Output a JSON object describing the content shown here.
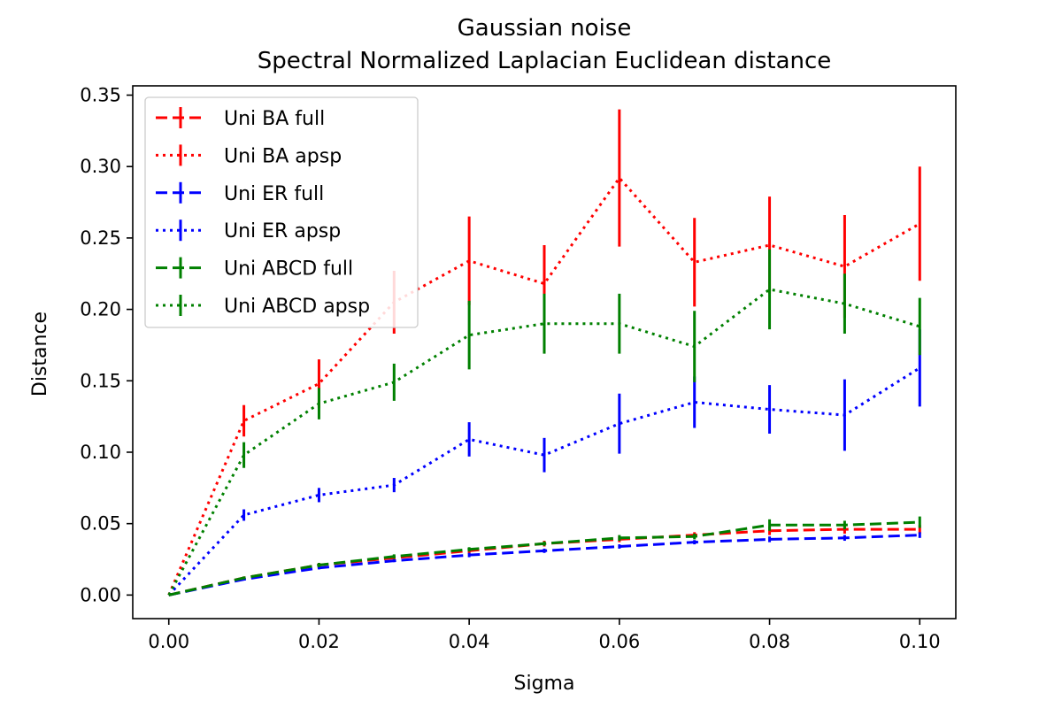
{
  "chart_data": {
    "type": "line",
    "title": "Gaussian noise",
    "subtitle": "Spectral Normalized Laplacian Euclidean distance",
    "xlabel": "Sigma",
    "ylabel": "Distance",
    "xlim": [
      -0.0048,
      0.1048
    ],
    "ylim": [
      -0.0165,
      0.3565
    ],
    "x": [
      0.0,
      0.01,
      0.02,
      0.03,
      0.04,
      0.05,
      0.06,
      0.07,
      0.08,
      0.09,
      0.1
    ],
    "xticks": [
      0.0,
      0.02,
      0.04,
      0.06,
      0.08,
      0.1
    ],
    "xtick_labels": [
      "0.00",
      "0.02",
      "0.04",
      "0.06",
      "0.08",
      "0.10"
    ],
    "yticks": [
      0.0,
      0.05,
      0.1,
      0.15,
      0.2,
      0.25,
      0.3,
      0.35
    ],
    "ytick_labels": [
      "0.00",
      "0.05",
      "0.10",
      "0.15",
      "0.20",
      "0.25",
      "0.30",
      "0.35"
    ],
    "grid": false,
    "legend_position": "upper-left",
    "series": [
      {
        "name": "Uni BA full",
        "color": "#ff0000",
        "linestyle": "dashed",
        "values": [
          0.0,
          0.012,
          0.021,
          0.026,
          0.031,
          0.036,
          0.039,
          0.042,
          0.045,
          0.046,
          0.046
        ],
        "errors": [
          0.0,
          0.001,
          0.0015,
          0.0015,
          0.002,
          0.002,
          0.002,
          0.002,
          0.003,
          0.003,
          0.003
        ]
      },
      {
        "name": "Uni BA apsp",
        "color": "#ff0000",
        "linestyle": "dotted",
        "values": [
          0.0,
          0.122,
          0.148,
          0.205,
          0.234,
          0.218,
          0.292,
          0.233,
          0.245,
          0.23,
          0.26
        ],
        "errors": [
          0.0,
          0.011,
          0.017,
          0.022,
          0.031,
          0.027,
          0.048,
          0.031,
          0.034,
          0.036,
          0.04
        ]
      },
      {
        "name": "Uni ER full",
        "color": "#0000ff",
        "linestyle": "dashed",
        "values": [
          0.0,
          0.011,
          0.019,
          0.024,
          0.028,
          0.031,
          0.034,
          0.037,
          0.039,
          0.04,
          0.042
        ],
        "errors": [
          0.0,
          0.0008,
          0.001,
          0.001,
          0.0015,
          0.0015,
          0.0015,
          0.0015,
          0.002,
          0.002,
          0.002
        ]
      },
      {
        "name": "Uni ER apsp",
        "color": "#0000ff",
        "linestyle": "dotted",
        "values": [
          0.0,
          0.056,
          0.07,
          0.077,
          0.109,
          0.098,
          0.12,
          0.135,
          0.13,
          0.126,
          0.159
        ],
        "errors": [
          0.0,
          0.004,
          0.005,
          0.005,
          0.012,
          0.012,
          0.021,
          0.018,
          0.017,
          0.025,
          0.027
        ]
      },
      {
        "name": "Uni ABCD full",
        "color": "#008000",
        "linestyle": "dashed",
        "values": [
          0.0,
          0.012,
          0.021,
          0.027,
          0.032,
          0.036,
          0.04,
          0.041,
          0.049,
          0.049,
          0.051
        ],
        "errors": [
          0.0,
          0.001,
          0.0015,
          0.0015,
          0.0015,
          0.0015,
          0.002,
          0.002,
          0.004,
          0.003,
          0.004
        ]
      },
      {
        "name": "Uni ABCD apsp",
        "color": "#008000",
        "linestyle": "dotted",
        "values": [
          0.0,
          0.098,
          0.134,
          0.149,
          0.182,
          0.19,
          0.19,
          0.174,
          0.214,
          0.204,
          0.188
        ],
        "errors": [
          0.0,
          0.009,
          0.011,
          0.013,
          0.024,
          0.021,
          0.021,
          0.025,
          0.028,
          0.021,
          0.02
        ]
      }
    ]
  }
}
